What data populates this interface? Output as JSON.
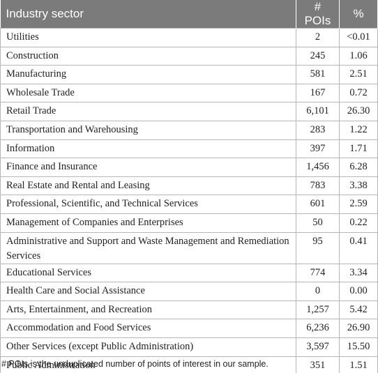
{
  "table": {
    "header": [
      "Industry sector",
      "# POIs",
      "%"
    ],
    "rows": [
      [
        "Utilities",
        "2",
        "<0.01"
      ],
      [
        "Construction",
        "245",
        "1.06"
      ],
      [
        "Manufacturing",
        "581",
        "2.51"
      ],
      [
        "Wholesale Trade",
        "167",
        "0.72"
      ],
      [
        "Retail Trade",
        "6,101",
        "26.30"
      ],
      [
        "Transportation and Warehousing",
        "283",
        "1.22"
      ],
      [
        "Information",
        "397",
        "1.71"
      ],
      [
        "Finance and Insurance",
        "1,456",
        "6.28"
      ],
      [
        "Real Estate and Rental and Leasing",
        "783",
        "3.38"
      ],
      [
        "Professional, Scientific, and Technical Services",
        "601",
        "2.59"
      ],
      [
        "Management of Companies and Enterprises",
        "50",
        "0.22"
      ],
      [
        "Administrative and Support and Waste Management and Remediation Services",
        "95",
        "0.41"
      ],
      [
        "Educational Services",
        "774",
        "3.34"
      ],
      [
        "Health Care and Social Assistance",
        "0",
        "0.00"
      ],
      [
        "Arts, Entertainment, and Recreation",
        "1,257",
        "5.42"
      ],
      [
        "Accommodation and Food Services",
        "6,236",
        "26.90"
      ],
      [
        "Other Services (except Public Administration)",
        "3,597",
        "15.50"
      ],
      [
        "Public Administration",
        "351",
        "1.51"
      ]
    ],
    "footnote": "# POIs is the unduplicated number of points of interest in our sample."
  }
}
